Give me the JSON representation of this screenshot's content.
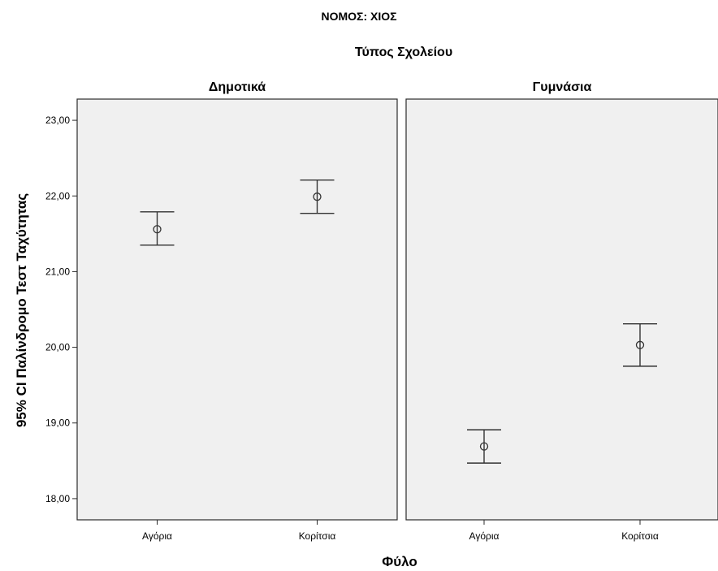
{
  "chart_data": {
    "type": "scatter",
    "title": "ΝΟΜΟΣ: ΧΙΟΣ",
    "subtitle": "Τύπος Σχολείου",
    "ylabel": "95% CI Παλίνδρομο Τεστ Ταχύτητας",
    "xlabel": "Φύλο",
    "ylim": [
      17.72,
      23.28
    ],
    "yticks": [
      "18,00",
      "19,00",
      "20,00",
      "21,00",
      "22,00",
      "23,00"
    ],
    "ytick_values": [
      18,
      19,
      20,
      21,
      22,
      23
    ],
    "panels": [
      {
        "name": "Δημοτικά",
        "categories": [
          "Αγόρια",
          "Κορίτσια"
        ],
        "mean": [
          21.56,
          21.99
        ],
        "lower": [
          21.35,
          21.77
        ],
        "upper": [
          21.79,
          22.21
        ]
      },
      {
        "name": "Γυμνάσια",
        "categories": [
          "Αγόρια",
          "Κορίτσια"
        ],
        "mean": [
          18.69,
          20.03
        ],
        "lower": [
          18.47,
          19.75
        ],
        "upper": [
          18.91,
          20.31
        ]
      }
    ]
  }
}
